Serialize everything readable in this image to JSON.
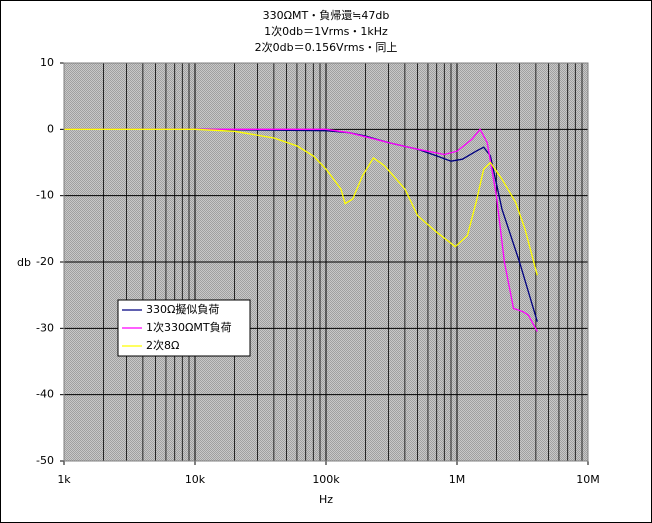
{
  "chart_data": {
    "type": "line",
    "title": [
      "330ΩMT・負帰還≒47db",
      "1次0db＝1Vrms・1kHz",
      "2次0db＝0.156Vrms・同上"
    ],
    "x_label": "Hz",
    "y_label": "db",
    "log_x": true,
    "grid": true,
    "minor_grid": true,
    "legend": "center-left",
    "xlim": [
      1000,
      10000000
    ],
    "xticks": [
      {
        "value": 1000,
        "label": "1k"
      },
      {
        "value": 10000,
        "label": "10k"
      },
      {
        "value": 100000,
        "label": "100k"
      },
      {
        "value": 1000000,
        "label": "1M"
      },
      {
        "value": 10000000,
        "label": "10M"
      }
    ],
    "ylim": [
      -50,
      10
    ],
    "yticks": [
      10,
      0,
      -10,
      -20,
      -30,
      -40,
      -50
    ],
    "series": [
      {
        "name": "330Ω擬似負荷",
        "color": "#000080",
        "x": [
          1000,
          10000,
          100000,
          150000,
          200000,
          300000,
          500000,
          700000,
          900000,
          1100000,
          1400000,
          1600000,
          1800000,
          2200000,
          3000000,
          4100000
        ],
        "values": [
          0,
          0,
          -0.2,
          -0.5,
          -1,
          -2,
          -3,
          -4,
          -4.8,
          -4.5,
          -3.3,
          -2.7,
          -4,
          -12,
          -20,
          -29
        ]
      },
      {
        "name": "1次330ΩMT負荷",
        "color": "#ff00ff",
        "x": [
          1000,
          10000,
          100000,
          150000,
          300000,
          500000,
          800000,
          1000000,
          1300000,
          1500000,
          1700000,
          2000000,
          2300000,
          2700000,
          3200000,
          3500000,
          4100000
        ],
        "values": [
          0,
          0,
          0,
          -0.5,
          -2,
          -3,
          -3.8,
          -3.3,
          -1.5,
          0,
          -2,
          -10,
          -20,
          -27,
          -27.5,
          -28,
          -30.5
        ]
      },
      {
        "name": "2次8Ω",
        "color": "#ffff00",
        "x": [
          1000,
          10000,
          20000,
          40000,
          60000,
          80000,
          100000,
          130000,
          140000,
          160000,
          190000,
          230000,
          280000,
          400000,
          500000,
          700000,
          970000,
          1200000,
          1400000,
          1600000,
          1800000,
          2200000,
          2800000,
          3300000,
          4100000
        ],
        "values": [
          0,
          0,
          -0.3,
          -1.3,
          -2.5,
          -4,
          -6,
          -9,
          -11.2,
          -10.5,
          -7,
          -4.3,
          -5.5,
          -9,
          -13,
          -15.5,
          -17.7,
          -16,
          -11,
          -6,
          -5,
          -7.5,
          -11,
          -15,
          -22
        ]
      }
    ]
  }
}
